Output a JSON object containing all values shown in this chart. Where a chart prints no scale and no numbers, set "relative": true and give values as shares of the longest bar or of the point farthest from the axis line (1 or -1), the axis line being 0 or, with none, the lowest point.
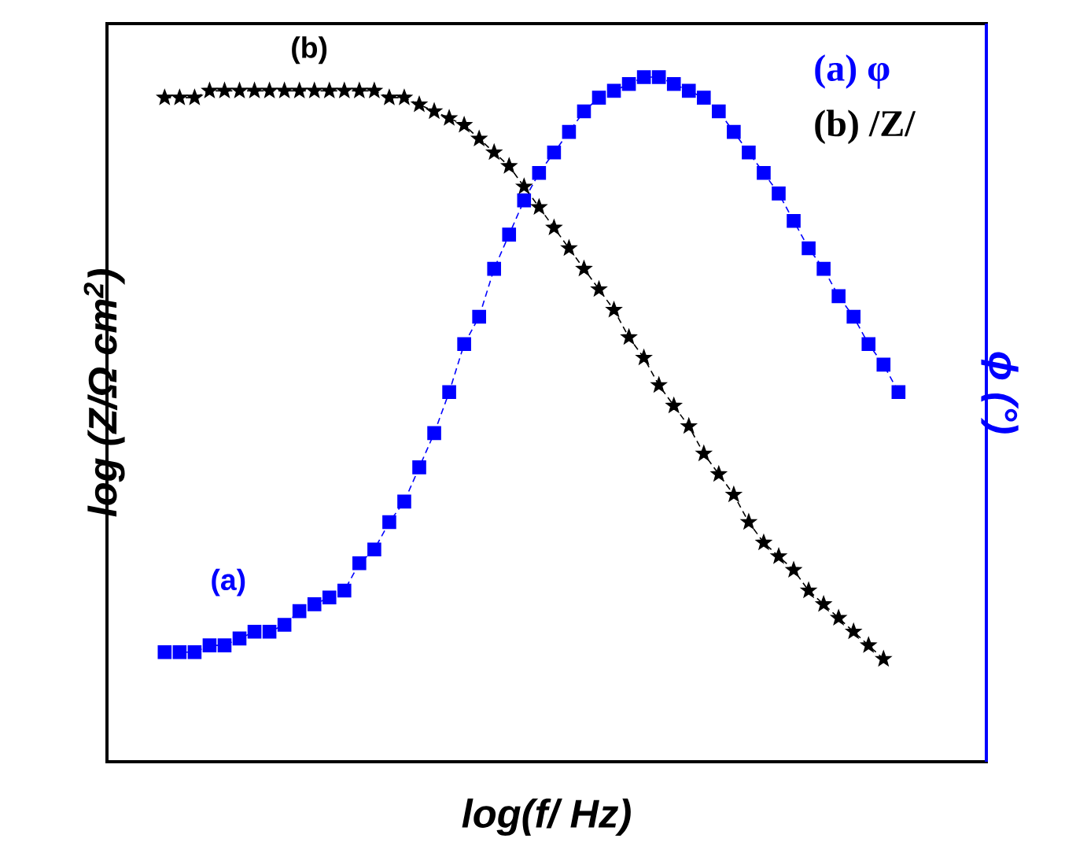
{
  "chart_data": {
    "type": "line",
    "relative": true,
    "xlabel": "log(f/ Hz)",
    "ylabel": "log (Z/Ω cm$^{2}$)",
    "y2label": "ϕ (°)",
    "categories": [
      null,
      null,
      null,
      null,
      null,
      null,
      null,
      null,
      null,
      null,
      null,
      null,
      null,
      null,
      null,
      null,
      null,
      null,
      null,
      null,
      null,
      null,
      null,
      null,
      null,
      null,
      null,
      null,
      null,
      null,
      null,
      null,
      null,
      null,
      null,
      null,
      null,
      null,
      null,
      null,
      null,
      null,
      null,
      null,
      null,
      null,
      null,
      null,
      null,
      null
    ],
    "series": [
      {
        "name": "(a) φ",
        "color": "#0000ff",
        "marker": "square",
        "line_style": "dashed",
        "values": [
          0.16,
          0.16,
          0.16,
          0.17,
          0.17,
          0.18,
          0.19,
          0.19,
          0.2,
          0.22,
          0.23,
          0.24,
          0.25,
          0.29,
          0.31,
          0.35,
          0.38,
          0.43,
          0.48,
          0.54,
          0.61,
          0.65,
          0.72,
          0.77,
          0.82,
          0.86,
          0.89,
          0.92,
          0.95,
          0.97,
          0.98,
          0.99,
          1.0,
          1.0,
          0.99,
          0.98,
          0.97,
          0.95,
          0.92,
          0.89,
          0.86,
          0.83,
          0.79,
          0.75,
          0.72,
          0.68,
          0.65,
          0.61,
          0.58,
          0.54
        ]
      },
      {
        "name": "(b) /Z/",
        "color": "#000000",
        "marker": "star",
        "line_style": "dashed",
        "values": [
          0.97,
          0.97,
          0.97,
          0.98,
          0.98,
          0.98,
          0.98,
          0.98,
          0.98,
          0.98,
          0.98,
          0.98,
          0.98,
          0.98,
          0.98,
          0.97,
          0.97,
          0.96,
          0.95,
          0.94,
          0.93,
          0.91,
          0.89,
          0.87,
          0.84,
          0.81,
          0.78,
          0.75,
          0.72,
          0.69,
          0.66,
          0.62,
          0.59,
          0.55,
          0.52,
          0.49,
          0.45,
          0.42,
          0.39,
          0.35,
          0.32,
          0.3,
          0.28,
          0.25,
          0.23,
          0.21,
          0.19,
          0.17,
          0.15,
          null
        ]
      }
    ],
    "annotations": [
      "(a)",
      "(b)"
    ],
    "legend": "top right"
  }
}
